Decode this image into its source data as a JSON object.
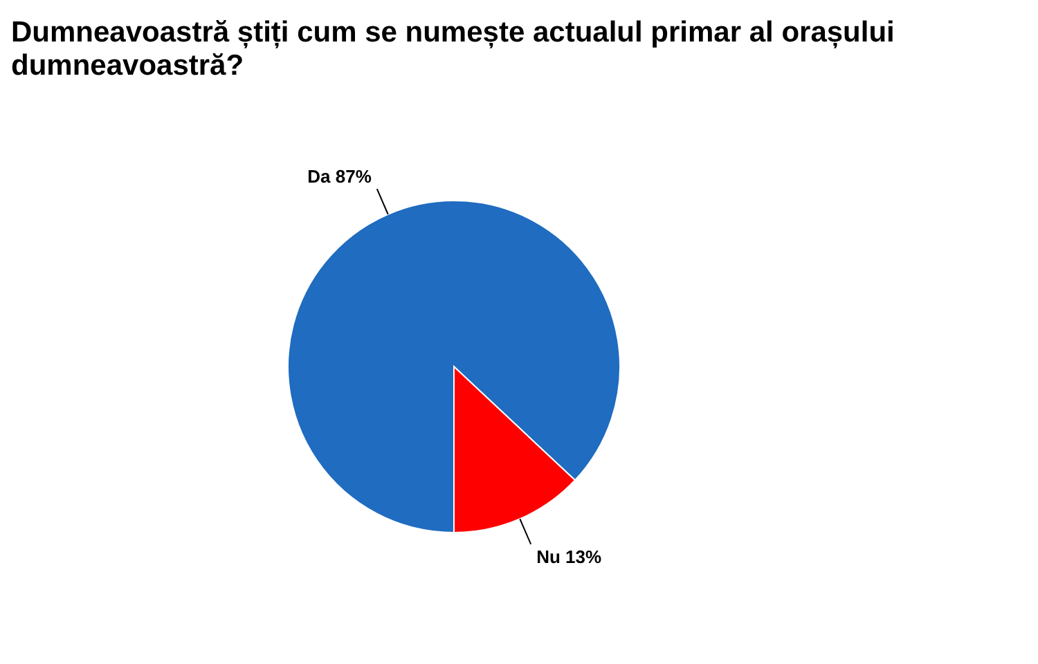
{
  "chart_data": {
    "type": "pie",
    "title": "Dumneavoastră știți cum se numește actualul primar al orașului dumneavoastră?",
    "categories": [
      "Da",
      "Nu"
    ],
    "values": [
      87,
      13
    ],
    "value_labels": [
      "87%",
      "13%"
    ],
    "colors": [
      "#1f6cc0",
      "#ff0000"
    ],
    "legend": false
  }
}
